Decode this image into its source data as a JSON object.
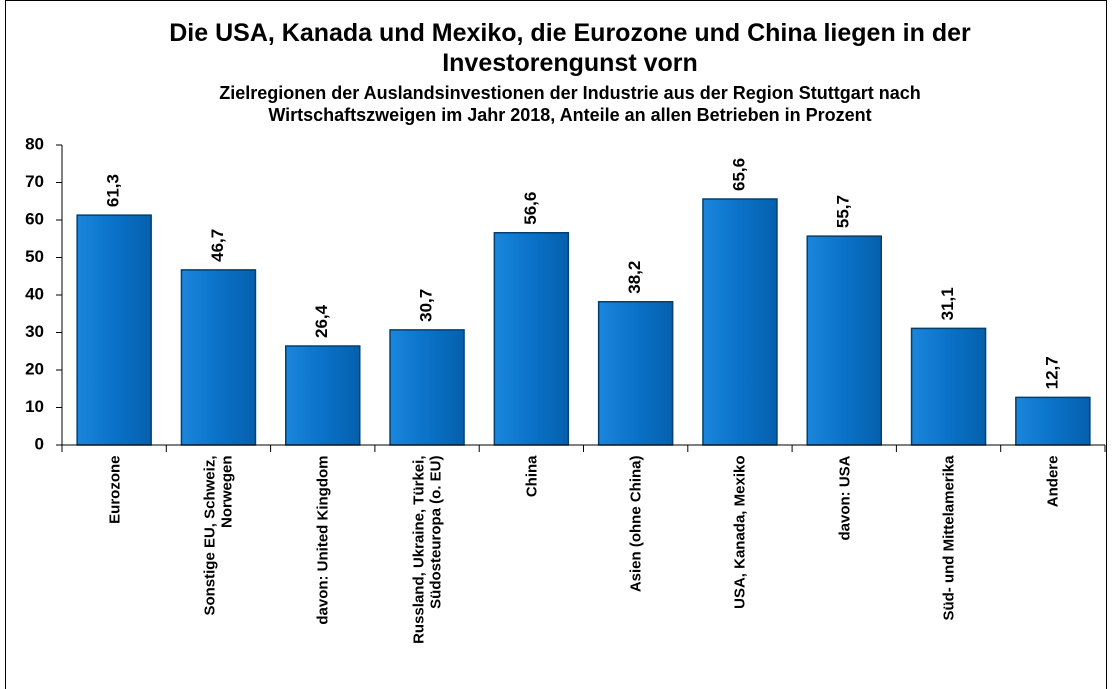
{
  "chart_data": {
    "type": "bar",
    "title": "Die USA, Kanada und Mexiko, die Eurozone und China liegen in der Investorengunst vorn",
    "subtitle": "Zielregionen der Auslandsinvestionen der Industrie aus der Region Stuttgart nach Wirtschaftszweigen im Jahr 2018, Anteile an allen Betrieben in Prozent",
    "categories": [
      "Eurozone",
      "Sonstige EU, Schweiz, Norwegen",
      "davon: United Kingdom",
      "Russland, Ukraine, Türkei, Südosteuropa (o. EU)",
      "China",
      "Asien (ohne China)",
      "USA, Kanada, Mexiko",
      "davon: USA",
      "Süd- und Mittelamerika",
      "Andere"
    ],
    "values": [
      61.3,
      46.7,
      26.4,
      30.7,
      56.6,
      38.2,
      65.6,
      55.7,
      31.1,
      12.7
    ],
    "value_labels": [
      "61,3",
      "46,7",
      "26,4",
      "30,7",
      "56,6",
      "38,2",
      "65,6",
      "55,7",
      "31,1",
      "12,7"
    ],
    "color": "#0a72c8",
    "ylim": [
      0,
      80
    ],
    "yticks": [
      0,
      10,
      20,
      30,
      40,
      50,
      60,
      70,
      80
    ],
    "grid": false
  }
}
